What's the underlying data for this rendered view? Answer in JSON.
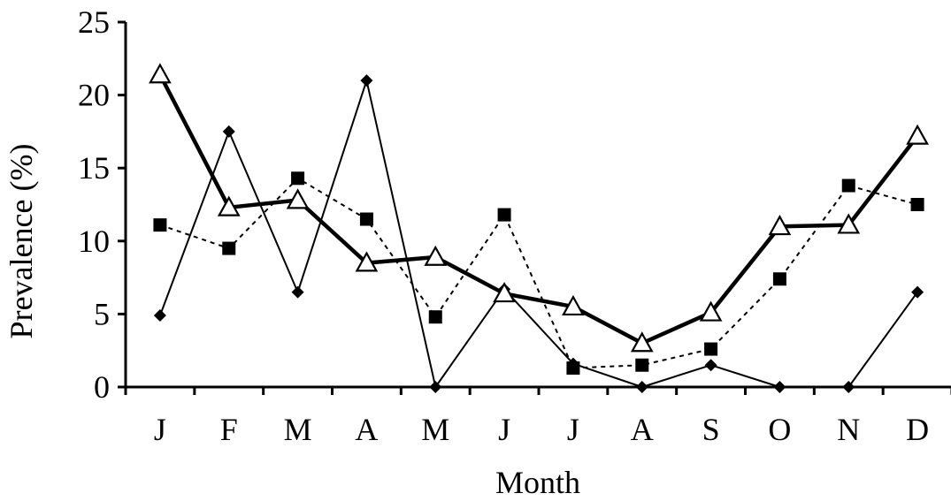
{
  "chart_data": {
    "type": "line",
    "title": "",
    "xlabel": "Month",
    "ylabel": "Prevalence (%)",
    "ylim": [
      0,
      25
    ],
    "yticks": [
      0,
      5,
      10,
      15,
      20,
      25
    ],
    "categories": [
      "J",
      "F",
      "M",
      "A",
      "M",
      "J",
      "J",
      "A",
      "S",
      "O",
      "N",
      "D"
    ],
    "grid": false,
    "legend": "none",
    "series": [
      {
        "marker": "diamond",
        "line": "thin-solid",
        "color": "#000000",
        "values": [
          4.9,
          17.5,
          6.5,
          21.0,
          0.0,
          6.7,
          1.6,
          0.0,
          1.5,
          0.0,
          0.0,
          6.5
        ]
      },
      {
        "marker": "square",
        "line": "dotted",
        "color": "#000000",
        "values": [
          11.1,
          9.5,
          14.3,
          11.5,
          4.8,
          11.8,
          1.3,
          1.5,
          2.6,
          7.4,
          13.8,
          12.5
        ]
      },
      {
        "marker": "open-triangle",
        "line": "thick-solid",
        "color": "#000000",
        "values": [
          21.4,
          12.3,
          12.8,
          8.5,
          8.9,
          6.4,
          5.5,
          3.0,
          5.1,
          11.0,
          11.1,
          17.2
        ]
      }
    ]
  }
}
